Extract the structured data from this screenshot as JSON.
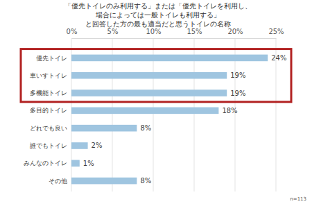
{
  "chart_data": {
    "type": "bar",
    "orientation": "horizontal",
    "title": "「優先トイレのみ利用する」または「優先トイレを利用し、\n場合によっては一般トイレも利用する」\nと回答した方の最も適当だと思うトイレの名称",
    "categories": [
      "優先トイレ",
      "車いすトイレ",
      "多機能トイレ",
      "多目的トイレ",
      "どれでも良い",
      "誰でもトイレ",
      "みんなのトイレ",
      "その他"
    ],
    "values": [
      24,
      19,
      19,
      18,
      8,
      2,
      1,
      8
    ],
    "value_labels": [
      "24%",
      "19%",
      "19%",
      "18%",
      "8%",
      "2%",
      "1%",
      "8%"
    ],
    "color": "#9fc5e0",
    "xlim": [
      0,
      25
    ],
    "xticks": [
      {
        "value": 0,
        "label": "0%"
      },
      {
        "value": 5,
        "label": "5%"
      },
      {
        "value": 10,
        "label": "10%"
      },
      {
        "value": 15,
        "label": "15%"
      },
      {
        "value": 20,
        "label": "20%"
      },
      {
        "value": 25,
        "label": "25%"
      }
    ],
    "grid": true,
    "data_labels": true,
    "annotations": [
      "n=113"
    ]
  }
}
